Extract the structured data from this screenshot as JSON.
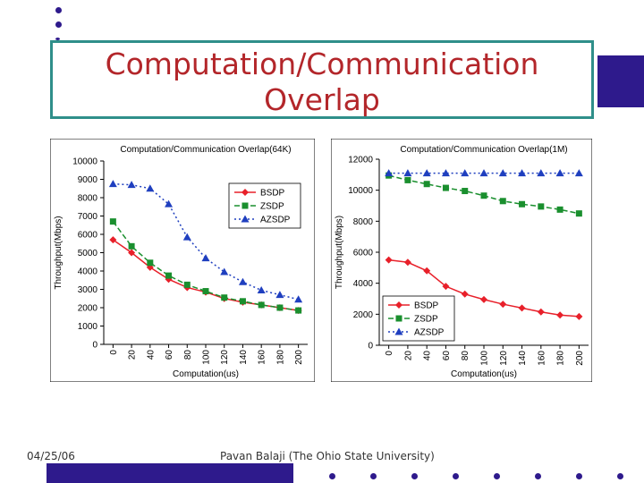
{
  "slide": {
    "title_line1": "Computation/Communication",
    "title_line2": "Overlap",
    "footer_date": "04/25/06",
    "footer_author": "Pavan Balaji (The Ohio State University)",
    "accent_color": "#2e1a8c",
    "title_color": "#b3262a",
    "border_color": "#2f8f8a"
  },
  "chart_data": [
    {
      "type": "line",
      "title": "Computation/Communication Overlap(64K)",
      "xlabel": "Computation(us)",
      "ylabel": "Throughput(Mbps)",
      "categories": [
        "0",
        "20",
        "40",
        "60",
        "80",
        "100",
        "120",
        "140",
        "160",
        "180",
        "200"
      ],
      "ylim": [
        0,
        10000
      ],
      "yticks": [
        0,
        1000,
        2000,
        3000,
        4000,
        5000,
        6000,
        7000,
        8000,
        9000,
        10000
      ],
      "legend_position": "right",
      "series": [
        {
          "name": "BSDP",
          "color": "#e8202a",
          "marker": "diamond",
          "dash": "solid",
          "values": [
            5700,
            5000,
            4200,
            3550,
            3100,
            2850,
            2500,
            2300,
            2150,
            2000,
            1850
          ]
        },
        {
          "name": "ZSDP",
          "color": "#1a8f2e",
          "marker": "square",
          "dash": "dashed",
          "values": [
            6700,
            5350,
            4450,
            3750,
            3250,
            2900,
            2550,
            2350,
            2150,
            2000,
            1850
          ]
        },
        {
          "name": "AZSDP",
          "color": "#1f3fbf",
          "marker": "triangle",
          "dash": "dotted",
          "values": [
            8750,
            8700,
            8500,
            7650,
            5850,
            4700,
            3950,
            3400,
            2950,
            2700,
            2450
          ]
        }
      ]
    },
    {
      "type": "line",
      "title": "Computation/Communication Overlap(1M)",
      "xlabel": "Computation(us)",
      "ylabel": "Throughput(Mbps)",
      "categories": [
        "0",
        "20",
        "40",
        "60",
        "80",
        "100",
        "120",
        "140",
        "160",
        "180",
        "200"
      ],
      "ylim": [
        0,
        12000
      ],
      "yticks": [
        0,
        2000,
        4000,
        6000,
        8000,
        10000,
        12000
      ],
      "legend_position": "bottom-left",
      "series": [
        {
          "name": "BSDP",
          "color": "#e8202a",
          "marker": "diamond",
          "dash": "solid",
          "values": [
            5500,
            5350,
            4800,
            3800,
            3300,
            2950,
            2650,
            2400,
            2150,
            1950,
            1850
          ]
        },
        {
          "name": "ZSDP",
          "color": "#1a8f2e",
          "marker": "square",
          "dash": "dashed",
          "values": [
            10950,
            10650,
            10400,
            10150,
            9950,
            9650,
            9300,
            9100,
            8950,
            8750,
            8500
          ]
        },
        {
          "name": "AZSDP",
          "color": "#1f3fbf",
          "marker": "triangle",
          "dash": "dotted",
          "values": [
            11100,
            11100,
            11100,
            11100,
            11100,
            11100,
            11100,
            11100,
            11100,
            11100,
            11100
          ]
        }
      ]
    }
  ]
}
